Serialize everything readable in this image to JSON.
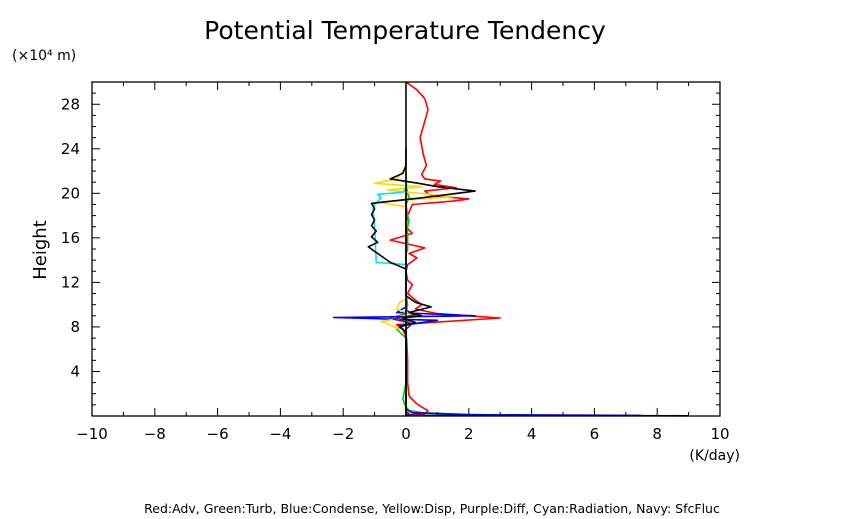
{
  "chart_data": {
    "type": "line",
    "title": "Potential Temperature Tendency",
    "xlabel": "(K/day)",
    "ylabel": "Height",
    "y_unit_label": "(×10⁴ m)",
    "xlim": [
      -10,
      10
    ],
    "ylim": [
      0,
      30
    ],
    "y_display_scale": 10000,
    "x_ticks": [
      -10,
      -8,
      -6,
      -4,
      -2,
      0,
      2,
      4,
      6,
      8,
      10
    ],
    "x_tick_labels": [
      "−10",
      "−8",
      "−6",
      "−4",
      "−2",
      "0",
      "2",
      "4",
      "6",
      "8",
      "10"
    ],
    "y_ticks": [
      4,
      8,
      12,
      16,
      20,
      24,
      28
    ],
    "y_tick_labels": [
      "4",
      "8",
      "12",
      "16",
      "20",
      "24",
      "28"
    ],
    "grid": false,
    "legend_text": "Red:Adv, Green:Turb, Blue:Condense, Yellow:Disp, Purple:Diff, Cyan:Radiation, Navy: SfcFluc",
    "series": [
      {
        "name": "Adv",
        "color": "#ff0000",
        "points": [
          [
            0,
            0.1
          ],
          [
            0.6,
            0.2
          ],
          [
            0.7,
            0.5
          ],
          [
            0.5,
            0.8
          ],
          [
            0.3,
            1.2
          ],
          [
            0.1,
            1.8
          ],
          [
            0.05,
            3
          ],
          [
            0.05,
            5
          ],
          [
            0.02,
            7
          ],
          [
            -0.1,
            7.8
          ],
          [
            -0.3,
            8.2
          ],
          [
            3.0,
            8.8
          ],
          [
            1.0,
            9.2
          ],
          [
            0.3,
            9.6
          ],
          [
            0.5,
            10
          ],
          [
            0.3,
            10.4
          ],
          [
            0.05,
            11
          ],
          [
            0.2,
            11.8
          ],
          [
            0.05,
            12.2
          ],
          [
            0.0,
            13
          ],
          [
            0.05,
            13.6
          ],
          [
            0.35,
            14.2
          ],
          [
            0.1,
            14.6
          ],
          [
            0.6,
            15.1
          ],
          [
            -0.5,
            15.8
          ],
          [
            0.2,
            16.4
          ],
          [
            0.0,
            17
          ],
          [
            0.05,
            18
          ],
          [
            0.2,
            19
          ],
          [
            1.5,
            19.3
          ],
          [
            2.0,
            19.5
          ],
          [
            0.8,
            19.8
          ],
          [
            0.6,
            20.2
          ],
          [
            1.6,
            20.5
          ],
          [
            0.9,
            20.8
          ],
          [
            1.1,
            21.1
          ],
          [
            0.6,
            21.3
          ],
          [
            0.5,
            21.7
          ],
          [
            0.65,
            22.5
          ],
          [
            0.55,
            23.5
          ],
          [
            0.45,
            25
          ],
          [
            0.6,
            26.5
          ],
          [
            0.7,
            27.5
          ],
          [
            0.6,
            28.5
          ],
          [
            0.35,
            29.3
          ],
          [
            0.15,
            29.7
          ],
          [
            0.0,
            30
          ]
        ]
      },
      {
        "name": "Turb",
        "color": "#00cc00",
        "points": [
          [
            3.5,
            0.05
          ],
          [
            1.8,
            0.15
          ],
          [
            0.5,
            0.3
          ],
          [
            0.1,
            0.5
          ],
          [
            0.0,
            0.8
          ],
          [
            -0.1,
            1.5
          ],
          [
            0.0,
            3
          ],
          [
            0.0,
            7
          ],
          [
            -0.3,
            7.8
          ],
          [
            -0.1,
            8.1
          ],
          [
            0.1,
            8.5
          ],
          [
            -0.5,
            8.8
          ],
          [
            0.0,
            9.2
          ],
          [
            0.05,
            10
          ],
          [
            0.0,
            11
          ],
          [
            0.0,
            14.5
          ],
          [
            0.05,
            15
          ],
          [
            0.05,
            17
          ],
          [
            0.1,
            17.5
          ],
          [
            0.05,
            18
          ],
          [
            0.0,
            19
          ],
          [
            0.1,
            19.6
          ],
          [
            0.05,
            20
          ],
          [
            0.0,
            21
          ],
          [
            0,
            22
          ]
        ]
      },
      {
        "name": "Condense",
        "color": "#0000ff",
        "points": [
          [
            7.5,
            0.05
          ],
          [
            2.0,
            0.12
          ],
          [
            0.2,
            0.3
          ],
          [
            0.0,
            0.6
          ],
          [
            0.0,
            7.5
          ],
          [
            -0.2,
            8.1
          ],
          [
            1.0,
            8.6
          ],
          [
            -2.3,
            8.85
          ],
          [
            2.2,
            9.0
          ],
          [
            -0.3,
            9.3
          ],
          [
            0.0,
            9.8
          ],
          [
            0.0,
            18
          ],
          [
            0,
            19
          ],
          [
            0,
            19.5
          ]
        ]
      },
      {
        "name": "Disp",
        "color": "#ffd700",
        "points": [
          [
            -0.2,
            7.8
          ],
          [
            -0.8,
            8.5
          ],
          [
            0.3,
            9.0
          ],
          [
            -0.3,
            9.6
          ],
          [
            -0.2,
            10.2
          ],
          [
            0.0,
            10.5
          ],
          [
            0.0,
            18.8
          ],
          [
            -0.9,
            19.2
          ],
          [
            1.5,
            19.7
          ],
          [
            -0.6,
            20.3
          ],
          [
            0.5,
            20.6
          ],
          [
            -1.0,
            20.9
          ],
          [
            -0.3,
            21.3
          ],
          [
            -0.1,
            22
          ],
          [
            0,
            22.5
          ]
        ]
      },
      {
        "name": "Diff",
        "color": "#800080",
        "points": [
          [
            0,
            0.05
          ],
          [
            0.1,
            0.2
          ],
          [
            0,
            0.4
          ],
          [
            0,
            7.8
          ],
          [
            0.2,
            8.3
          ],
          [
            -0.4,
            8.7
          ],
          [
            0.3,
            9.1
          ],
          [
            0,
            9.5
          ],
          [
            0,
            12
          ],
          [
            0,
            20
          ]
        ]
      },
      {
        "name": "Radiation",
        "color": "#00e5ee",
        "points": [
          [
            0,
            0.3
          ],
          [
            0.0,
            13.6
          ],
          [
            -0.95,
            13.8
          ],
          [
            -1.0,
            17
          ],
          [
            -1.05,
            18.6
          ],
          [
            -1.0,
            19.0
          ],
          [
            -0.8,
            19.6
          ],
          [
            -0.9,
            19.9
          ],
          [
            -0.1,
            20.1
          ],
          [
            0,
            20.5
          ]
        ]
      },
      {
        "name": "SfcFluc",
        "color": "#000080",
        "points": [
          [
            9,
            0.02
          ],
          [
            0,
            0.05
          ]
        ]
      },
      {
        "name": "",
        "color": "#000000",
        "points": [
          [
            0,
            0.1
          ],
          [
            0,
            0.6
          ],
          [
            0,
            1.5
          ],
          [
            0,
            7.5
          ],
          [
            -0.2,
            8.0
          ],
          [
            0.3,
            8.4
          ],
          [
            -0.1,
            8.8
          ],
          [
            0.5,
            9.0
          ],
          [
            0.1,
            9.3
          ],
          [
            0.8,
            9.8
          ],
          [
            0.3,
            10.2
          ],
          [
            0.0,
            10.8
          ],
          [
            0,
            12
          ],
          [
            0,
            13.2
          ],
          [
            -0.5,
            13.8
          ],
          [
            -0.9,
            14.6
          ],
          [
            -1.2,
            15.2
          ],
          [
            -0.9,
            15.6
          ],
          [
            -1.1,
            16.1
          ],
          [
            -0.95,
            16.6
          ],
          [
            -1.1,
            17.1
          ],
          [
            -1.0,
            17.6
          ],
          [
            -1.1,
            18.1
          ],
          [
            -1.0,
            18.6
          ],
          [
            -1.1,
            19.1
          ],
          [
            0.5,
            19.6
          ],
          [
            2.2,
            20.2
          ],
          [
            1.0,
            20.6
          ],
          [
            0.4,
            20.9
          ],
          [
            -0.5,
            21.3
          ],
          [
            -0.1,
            21.8
          ],
          [
            0,
            22.5
          ],
          [
            0,
            24
          ]
        ]
      },
      {
        "name": "",
        "color": "#000000",
        "points": [
          [
            0,
            0
          ],
          [
            0,
            30
          ]
        ]
      }
    ]
  }
}
